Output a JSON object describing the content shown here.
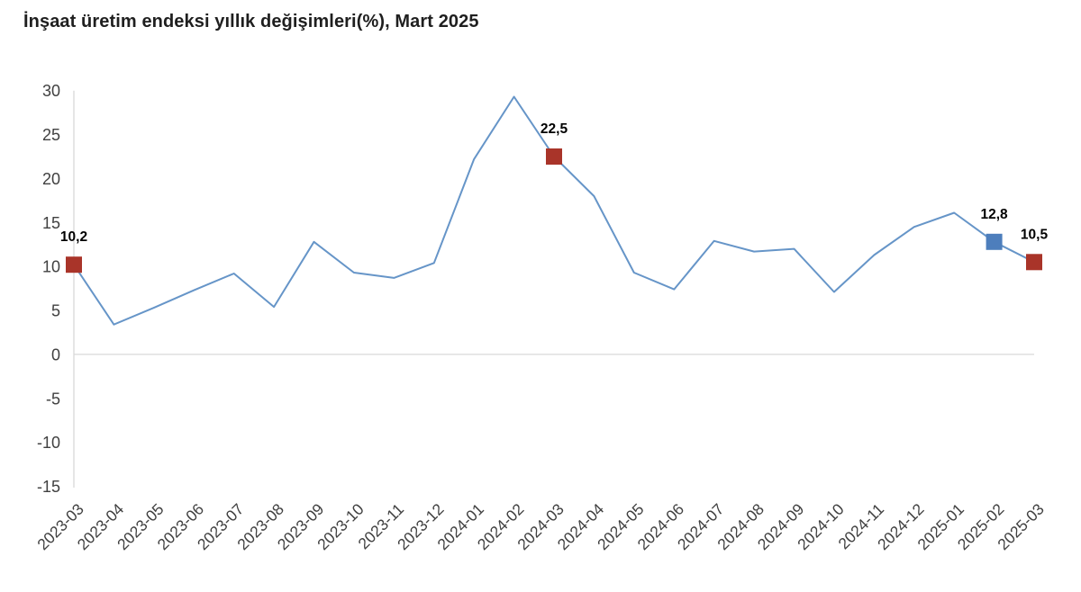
{
  "title": "İnşaat üretim endeksi yıllık değişimleri(%), Mart 2025",
  "chart_data": {
    "type": "line",
    "title": "İnşaat üretim endeksi yıllık değişimleri(%), Mart 2025",
    "categories": [
      "2023-03",
      "2023-04",
      "2023-05",
      "2023-06",
      "2023-07",
      "2023-08",
      "2023-09",
      "2023-10",
      "2023-11",
      "2023-12",
      "2024-01",
      "2024-02",
      "2024-03",
      "2024-04",
      "2024-05",
      "2024-06",
      "2024-07",
      "2024-08",
      "2024-09",
      "2024-10",
      "2024-11",
      "2024-12",
      "2025-01",
      "2025-02",
      "2025-03"
    ],
    "values": [
      10.2,
      3.4,
      5.3,
      7.3,
      9.2,
      5.4,
      12.8,
      9.3,
      8.7,
      10.4,
      22.2,
      29.3,
      22.5,
      18.0,
      9.3,
      7.4,
      12.9,
      11.7,
      12.0,
      7.1,
      11.3,
      14.5,
      16.1,
      12.8,
      10.5
    ],
    "ylim": [
      -15,
      30
    ],
    "ytick_step": 5,
    "yticks": [
      30,
      25,
      20,
      15,
      10,
      5,
      0,
      -5,
      -10,
      -15
    ],
    "x_label_rotation": -45,
    "decimal_separator": ",",
    "grid": "zero-line-only",
    "legend": "none",
    "highlighted_points": [
      {
        "index": 0,
        "category": "2023-03",
        "value": 10.2,
        "label": "10,2",
        "marker": "square",
        "color": "#a93429"
      },
      {
        "index": 12,
        "category": "2024-03",
        "value": 22.5,
        "label": "22,5",
        "marker": "square",
        "color": "#a93429"
      },
      {
        "index": 23,
        "category": "2025-02",
        "value": 12.8,
        "label": "12,8",
        "marker": "square",
        "color": "#4d7ebc"
      },
      {
        "index": 24,
        "category": "2025-03",
        "value": 10.5,
        "label": "10,5",
        "marker": "square",
        "color": "#a93429"
      }
    ],
    "colors": {
      "line": "#6695c8",
      "marker_red": "#a93429",
      "marker_blue": "#4d7ebc",
      "axis_line": "#d9d9d9",
      "zero_line": "#d9d9d9",
      "tick_text": "#404040",
      "point_label_text": "#000000",
      "title_text": "#1f1f1f",
      "background": "#ffffff"
    }
  }
}
